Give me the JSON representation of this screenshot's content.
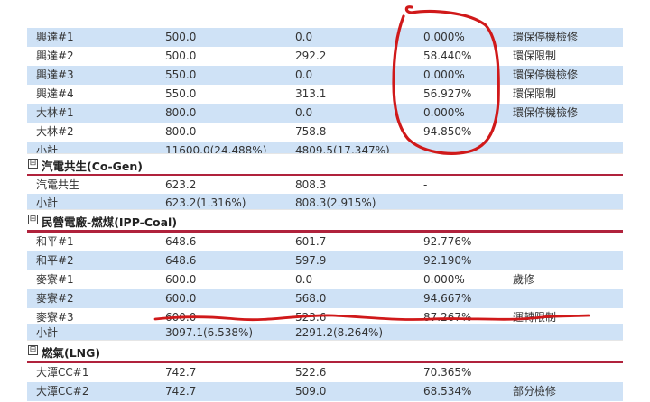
{
  "sections": [
    {
      "rows": [
        {
          "c1": "興達#1",
          "c2": "500.0",
          "c3": "0.0",
          "c4": "0.000%",
          "c5": "環保停機檢修"
        },
        {
          "c1": "興達#2",
          "c2": "500.0",
          "c3": "292.2",
          "c4": "58.440%",
          "c5": "環保限制"
        },
        {
          "c1": "興達#3",
          "c2": "550.0",
          "c3": "0.0",
          "c4": "0.000%",
          "c5": "環保停機檢修"
        },
        {
          "c1": "興達#4",
          "c2": "550.0",
          "c3": "313.1",
          "c4": "56.927%",
          "c5": "環保限制"
        },
        {
          "c1": "大林#1",
          "c2": "800.0",
          "c3": "0.0",
          "c4": "0.000%",
          "c5": "環保停機檢修"
        },
        {
          "c1": "大林#2",
          "c2": "800.0",
          "c3": "758.8",
          "c4": "94.850%",
          "c5": ""
        },
        {
          "c1": "小計",
          "c2": "11600.0(24.488%)",
          "c3": "4809.5(17.347%)",
          "c4": "",
          "c5": ""
        }
      ]
    },
    {
      "title": "汽電共生(Co-Gen)",
      "rows": [
        {
          "c1": "汽電共生",
          "c2": "623.2",
          "c3": "808.3",
          "c4": "-",
          "c5": ""
        },
        {
          "c1": "小計",
          "c2": "623.2(1.316%)",
          "c3": "808.3(2.915%)",
          "c4": "",
          "c5": ""
        }
      ]
    },
    {
      "title": "民營電廠-燃煤(IPP-Coal)",
      "rows": [
        {
          "c1": "和平#1",
          "c2": "648.6",
          "c3": "601.7",
          "c4": "92.776%",
          "c5": ""
        },
        {
          "c1": "和平#2",
          "c2": "648.6",
          "c3": "597.9",
          "c4": "92.190%",
          "c5": ""
        },
        {
          "c1": "麥寮#1",
          "c2": "600.0",
          "c3": "0.0",
          "c4": "0.000%",
          "c5": "歲修"
        },
        {
          "c1": "麥寮#2",
          "c2": "600.0",
          "c3": "568.0",
          "c4": "94.667%",
          "c5": ""
        },
        {
          "c1": "麥寮#3",
          "c2": "600.0",
          "c3": "523.6",
          "c4": "87.267%",
          "c5": "運轉限制"
        },
        {
          "c1": "小計",
          "c2": "3097.1(6.538%)",
          "c3": "2291.2(8.264%)",
          "c4": "",
          "c5": ""
        }
      ]
    },
    {
      "title": "燃氣(LNG)",
      "rows": [
        {
          "c1": "大潭CC#1",
          "c2": "742.7",
          "c3": "522.6",
          "c4": "70.365%",
          "c5": ""
        },
        {
          "c1": "大潭CC#2",
          "c2": "742.7",
          "c3": "509.0",
          "c4": "68.534%",
          "c5": "部分檢修"
        }
      ]
    }
  ],
  "colors": {
    "row_blue": "#cfe2f6",
    "section_rule": "#b0223c",
    "ink": "#d0191a"
  },
  "icons": {
    "section_toggle": "⊟"
  }
}
